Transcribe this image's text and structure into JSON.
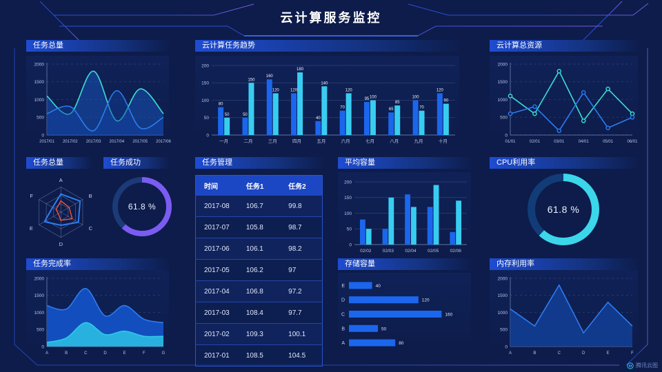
{
  "header": {
    "title": "云计算服务监控"
  },
  "watermark": {
    "label": "腾讯云图"
  },
  "colors": {
    "background": "#0d1c4a",
    "frame_blue": "#2b4fd4",
    "frame_purple": "#7a5ae0",
    "accent_blue": "#1b66ec",
    "accent_cyan": "#38cdf0",
    "accent_teal": "#3be0d5",
    "accent_purple": "#7b5cf2",
    "accent_red": "#f4543c"
  },
  "chart_data": [
    {
      "id": "tasks_total",
      "type": "area",
      "title": "任务总量",
      "x": [
        "2017/01",
        "2017/02",
        "2017/03",
        "2017/04",
        "2017/05",
        "2017/06"
      ],
      "ylim": [
        0,
        2000
      ],
      "yticks": [
        0,
        500,
        1000,
        1500,
        2000
      ],
      "grid": "dashed",
      "smooth": true,
      "series": [
        {
          "name": "series-cyan",
          "color": "#3be0d5",
          "fill": "rgba(21,86,190,0.50)",
          "values": [
            1100,
            600,
            1800,
            400,
            1300,
            600
          ]
        },
        {
          "name": "series-blue",
          "color": "#2e7cf0",
          "fill": "rgba(18,64,160,0.45)",
          "values": [
            600,
            800,
            120,
            1250,
            200,
            500
          ]
        }
      ]
    },
    {
      "id": "cloud_trend",
      "type": "bar",
      "title": "云计算任务趋势",
      "categories": [
        "一月",
        "二月",
        "三月",
        "四月",
        "五月",
        "六月",
        "七月",
        "八月",
        "九月",
        "十月"
      ],
      "ylim": [
        0,
        200
      ],
      "yticks": [
        0,
        50,
        100,
        150,
        200
      ],
      "value_labels": true,
      "series": [
        {
          "name": "series-blue",
          "color": "#1b66ec",
          "values": [
            80,
            50,
            160,
            120,
            40,
            70,
            95,
            65,
            100,
            120
          ]
        },
        {
          "name": "series-cyan",
          "color": "#38cdf0",
          "values": [
            50,
            150,
            120,
            180,
            140,
            120,
            100,
            85,
            70,
            90
          ]
        }
      ]
    },
    {
      "id": "cloud_resources",
      "type": "line",
      "title": "云计算总资源",
      "x": [
        "01/01",
        "02/01",
        "03/01",
        "04/01",
        "05/01",
        "06/01"
      ],
      "ylim": [
        0,
        2000
      ],
      "yticks": [
        0,
        500,
        1000,
        1500,
        2000
      ],
      "grid": "dashed",
      "markers": true,
      "series": [
        {
          "name": "series-cyan",
          "color": "#3be0d5",
          "values": [
            1100,
            600,
            1800,
            400,
            1300,
            600
          ]
        },
        {
          "name": "series-blue",
          "color": "#2e7cf0",
          "values": [
            600,
            800,
            120,
            1200,
            200,
            500
          ]
        }
      ]
    },
    {
      "id": "tasks_radar",
      "type": "radar",
      "title": "任务总量",
      "axes": [
        "A",
        "B",
        "C",
        "D",
        "E",
        "F"
      ],
      "max": 100,
      "rings": 3,
      "series": [
        {
          "name": "series-blue",
          "color": "#2e7cf0",
          "width": 2,
          "values": [
            72,
            88,
            80,
            52,
            75,
            38
          ]
        },
        {
          "name": "series-red",
          "color": "#f4543c",
          "width": 1.4,
          "values": [
            45,
            38,
            52,
            32,
            12,
            22
          ]
        }
      ]
    },
    {
      "id": "task_success",
      "type": "donut",
      "title": "任务成功",
      "percent": 61.8,
      "center_label": "61.8 %",
      "color": "#7b5cf2",
      "track": "#1c3a78",
      "thickness": 8
    },
    {
      "id": "task_table",
      "type": "table",
      "title": "任务管理",
      "columns": [
        "时间",
        "任务1",
        "任务2"
      ],
      "rows": [
        [
          "2017-08",
          "106.7",
          "99.8"
        ],
        [
          "2017-07",
          "105.8",
          "98.7"
        ],
        [
          "2017-06",
          "106.1",
          "98.2"
        ],
        [
          "2017-05",
          "106.2",
          "97"
        ],
        [
          "2017-04",
          "106.8",
          "97.2"
        ],
        [
          "2017-03",
          "108.4",
          "97.7"
        ],
        [
          "2017-02",
          "109.3",
          "100.1"
        ],
        [
          "2017-01",
          "108.5",
          "104.5"
        ]
      ]
    },
    {
      "id": "avg_capacity",
      "type": "bar",
      "title": "平均容量",
      "categories": [
        "02/02",
        "02/03",
        "02/04",
        "02/05",
        "02/06"
      ],
      "ylim": [
        0,
        200
      ],
      "yticks": [
        0,
        50,
        100,
        150,
        200
      ],
      "value_labels": false,
      "series": [
        {
          "name": "series-blue",
          "color": "#1b66ec",
          "values": [
            80,
            50,
            160,
            120,
            40
          ]
        },
        {
          "name": "series-cyan",
          "color": "#38cdf0",
          "values": [
            50,
            150,
            120,
            190,
            140
          ]
        }
      ]
    },
    {
      "id": "cpu_usage",
      "type": "donut",
      "title": "CPU利用率",
      "percent": 61.8,
      "center_label": "61.8 %",
      "color": "#3bd6ea",
      "track": "#123c78",
      "thickness": 11
    },
    {
      "id": "task_completion",
      "type": "area",
      "title": "任务完成率",
      "x": [
        "A",
        "B",
        "C",
        "D",
        "E",
        "F",
        "G"
      ],
      "ylim": [
        0,
        2000
      ],
      "yticks": [
        0,
        500,
        1000,
        1500,
        2000
      ],
      "grid": "dashed",
      "smooth": true,
      "series": [
        {
          "name": "series-blue",
          "color": "#2e7cf0",
          "fill": "rgba(20,82,200,0.92)",
          "values": [
            1200,
            1100,
            1700,
            900,
            1200,
            800,
            700
          ]
        },
        {
          "name": "series-cyan",
          "color": "#2fc8e8",
          "fill": "rgba(41,182,224,0.95)",
          "values": [
            120,
            250,
            700,
            350,
            450,
            300,
            300
          ]
        }
      ]
    },
    {
      "id": "storage",
      "type": "hbar",
      "title": "存储容量",
      "categories": [
        "E",
        "D",
        "C",
        "B",
        "A"
      ],
      "values": [
        40,
        120,
        160,
        50,
        80
      ],
      "xmax": 175,
      "color": "#1b66ec"
    },
    {
      "id": "memory",
      "type": "area",
      "title": "内存利用率",
      "x": [
        "A",
        "B",
        "C",
        "D",
        "E",
        "F"
      ],
      "ylim": [
        0,
        2000
      ],
      "yticks": [
        0,
        500,
        1000,
        1500,
        2000
      ],
      "grid": "dashed",
      "smooth": false,
      "series": [
        {
          "name": "series-blue",
          "color": "#2e7cf0",
          "fill": "rgba(18,64,150,0.85)",
          "values": [
            1100,
            600,
            1800,
            400,
            1300,
            600
          ]
        }
      ]
    }
  ]
}
